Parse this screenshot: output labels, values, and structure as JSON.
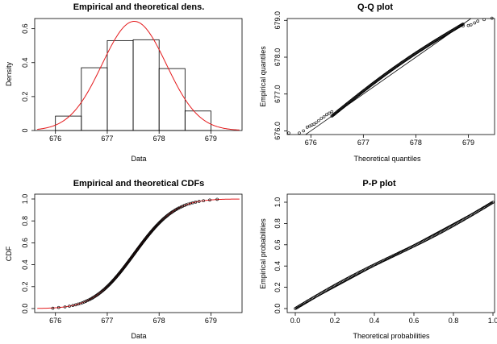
{
  "chart_data": [
    {
      "type": "bar",
      "title": "Empirical and theoretical dens.",
      "xlabel": "Data",
      "ylabel": "Density",
      "xlim": [
        675.6,
        679.6
      ],
      "ylim": [
        0,
        0.66
      ],
      "x_ticks": [
        "676",
        "677",
        "678",
        "679"
      ],
      "y_ticks": [
        "0",
        "0.2",
        "0.4",
        "0.6"
      ],
      "histogram_bins": [
        {
          "from": 676.0,
          "to": 676.5,
          "density": 0.085
        },
        {
          "from": 676.5,
          "to": 677.0,
          "density": 0.37
        },
        {
          "from": 677.0,
          "to": 677.5,
          "density": 0.53
        },
        {
          "from": 677.5,
          "to": 678.0,
          "density": 0.535
        },
        {
          "from": 678.0,
          "to": 678.5,
          "density": 0.365
        },
        {
          "from": 678.5,
          "to": 679.0,
          "density": 0.115
        }
      ],
      "theoretical_density": {
        "distribution": "normal",
        "mean": 677.52,
        "sd": 0.62,
        "color": "#e41a1c"
      },
      "histogram_color": "#000000"
    },
    {
      "type": "scatter",
      "title": "Q-Q plot",
      "xlabel": "Theoretical quantiles",
      "ylabel": "Empirical quantiles",
      "xlim": [
        675.55,
        679.5
      ],
      "ylim": [
        675.9,
        679.05
      ],
      "x_ticks": [
        "676",
        "677",
        "678",
        "679"
      ],
      "y_ticks": [
        "676.0",
        "677.0",
        "678.0",
        "679.0"
      ],
      "reference_line": "identity",
      "points": [
        [
          675.58,
          675.94
        ],
        [
          675.78,
          675.94
        ],
        [
          675.86,
          676.0
        ],
        [
          675.93,
          676.1
        ],
        [
          675.98,
          676.13
        ],
        [
          676.02,
          676.16
        ],
        [
          676.06,
          676.18
        ],
        [
          676.1,
          676.22
        ],
        [
          676.15,
          676.28
        ],
        [
          676.2,
          676.34
        ],
        [
          676.25,
          676.38
        ],
        [
          676.3,
          676.44
        ],
        [
          676.35,
          676.48
        ],
        [
          676.4,
          676.52
        ],
        [
          678.9,
          678.85
        ],
        [
          679.0,
          678.86
        ],
        [
          679.05,
          678.88
        ],
        [
          679.12,
          678.93
        ],
        [
          679.18,
          678.98
        ],
        [
          679.3,
          679.02
        ],
        [
          679.45,
          679.06
        ]
      ],
      "point_color": "#000000",
      "line_color": "#000000"
    },
    {
      "type": "line",
      "title": "Empirical and theoretical CDFs",
      "xlabel": "Data",
      "ylabel": "CDF",
      "xlim": [
        675.6,
        679.6
      ],
      "ylim": [
        0,
        1
      ],
      "x_ticks": [
        "676",
        "677",
        "678",
        "679"
      ],
      "y_ticks": [
        "0.0",
        "0.2",
        "0.4",
        "0.6",
        "0.8",
        "1.0"
      ],
      "empirical_range": [
        675.95,
        679.12
      ],
      "theoretical_cdf": {
        "distribution": "normal",
        "mean": 677.52,
        "sd": 0.62,
        "color": "#e41a1c"
      },
      "point_color": "#000000"
    },
    {
      "type": "scatter",
      "title": "P-P plot",
      "xlabel": "Theoretical probabilities",
      "ylabel": "Empirical probabilities",
      "xlim": [
        0,
        1
      ],
      "ylim": [
        0,
        1
      ],
      "x_ticks": [
        "0.0",
        "0.2",
        "0.4",
        "0.6",
        "0.8",
        "1.0"
      ],
      "y_ticks": [
        "0.0",
        "0.2",
        "0.4",
        "0.6",
        "0.8",
        "1.0"
      ],
      "reference_line": "identity",
      "point_color": "#000000",
      "line_color": "#000000"
    }
  ]
}
